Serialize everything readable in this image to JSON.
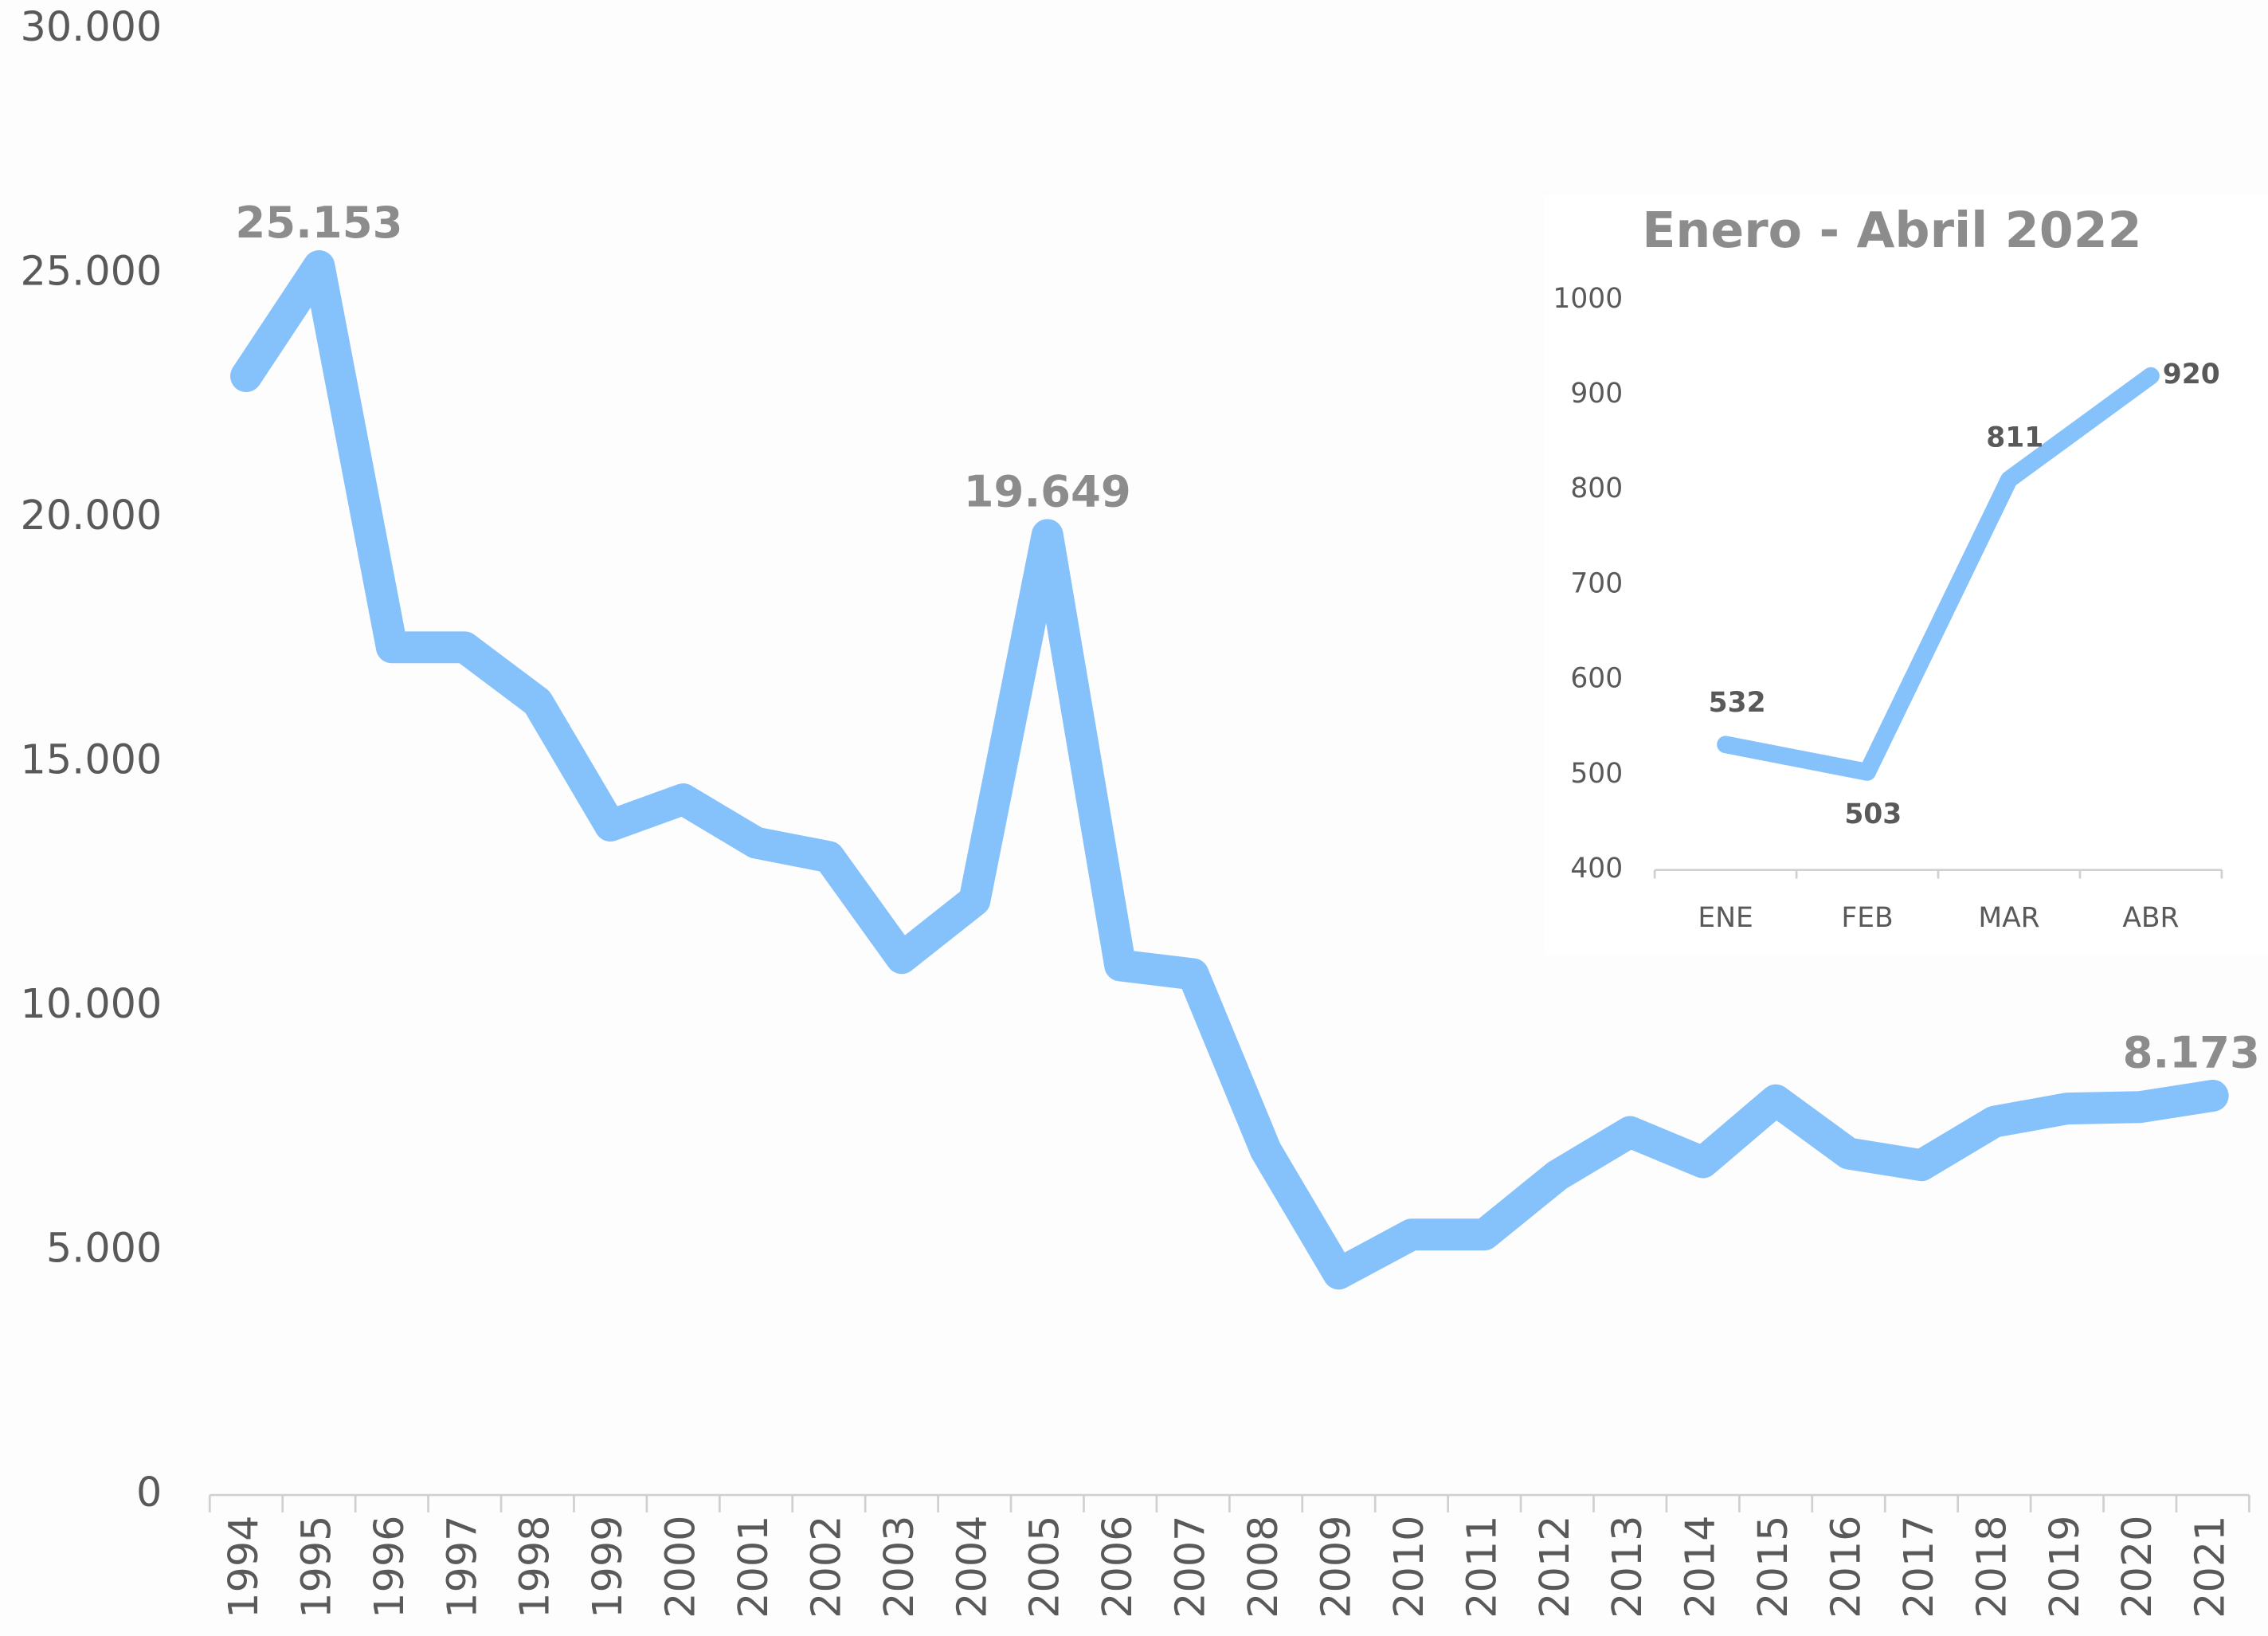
{
  "chart_data": [
    {
      "type": "line",
      "categories": [
        "1994",
        "1995",
        "1996",
        "1997",
        "1998",
        "1999",
        "2000",
        "2001",
        "2002",
        "2003",
        "2004",
        "2005",
        "2006",
        "2007",
        "2008",
        "2009",
        "2010",
        "2011",
        "2012",
        "2013",
        "2014",
        "2015",
        "2016",
        "2017",
        "2018",
        "2019",
        "2020",
        "2021"
      ],
      "series": [
        {
          "color": "#85c1fb",
          "values": [
            22900,
            25153,
            17350,
            17350,
            16230,
            13700,
            14240,
            13350,
            13060,
            10990,
            12170,
            19649,
            10840,
            10660,
            7050,
            4530,
            5330,
            5330,
            6540,
            7430,
            6810,
            8080,
            6990,
            6750,
            7640,
            7910,
            7940,
            8173
          ],
          "value_labels": [
            null,
            "25.153",
            null,
            null,
            null,
            null,
            null,
            null,
            null,
            null,
            null,
            "19.649",
            null,
            null,
            null,
            null,
            null,
            null,
            null,
            null,
            null,
            null,
            null,
            null,
            null,
            null,
            null,
            "8.173"
          ]
        }
      ],
      "ylim": [
        0,
        30000
      ],
      "yticks": [
        0,
        {
          "value": 5000,
          "label": "5.000"
        },
        {
          "value": 10000,
          "label": "10.000"
        },
        {
          "value": 15000,
          "label": "15.000"
        },
        {
          "value": 20000,
          "label": "20.000"
        },
        {
          "value": 25000,
          "label": "25.000"
        },
        {
          "value": 30000,
          "label": "30.000"
        }
      ],
      "grid": false
    },
    {
      "type": "line",
      "title": "Enero - Abril 2022",
      "categories": [
        "ENE",
        "FEB",
        "MAR",
        "ABR"
      ],
      "series": [
        {
          "color": "#85c1fb",
          "values": [
            532,
            503,
            811,
            920
          ]
        }
      ],
      "ylim": [
        400,
        1000
      ],
      "yticks": [
        400,
        500,
        600,
        700,
        800,
        900,
        1000
      ],
      "grid": false
    }
  ]
}
